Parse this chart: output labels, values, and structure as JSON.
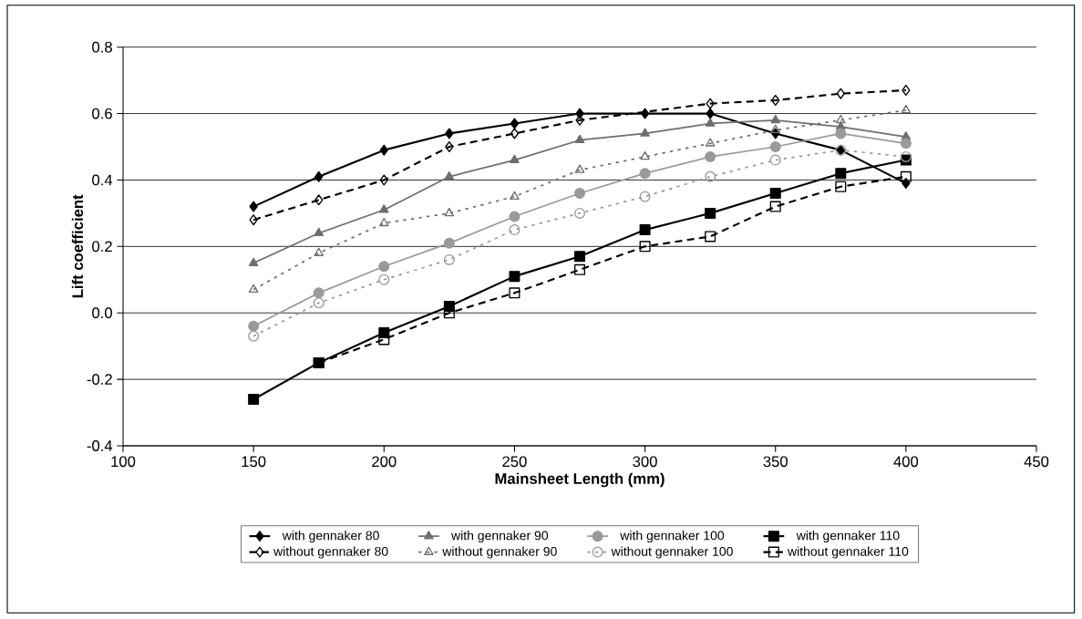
{
  "chart_data": {
    "type": "line",
    "xlabel": "Mainsheet Length (mm)",
    "ylabel": "Lift coefficient",
    "x": [
      150,
      175,
      200,
      225,
      250,
      275,
      300,
      325,
      350,
      375,
      400
    ],
    "xlim": [
      100,
      450
    ],
    "xticks": [
      100,
      150,
      200,
      250,
      300,
      350,
      400,
      450
    ],
    "ylim": [
      -0.4,
      0.8
    ],
    "yticks": [
      {
        "value": -0.4,
        "label": "-0.4"
      },
      {
        "value": -0.2,
        "label": "-0.2"
      },
      {
        "value": 0,
        "label": "0.0"
      },
      {
        "value": 0.2,
        "label": "0.2"
      },
      {
        "value": 0.4,
        "label": "0.4"
      },
      {
        "value": 0.6,
        "label": "0.6"
      },
      {
        "value": 0.8,
        "label": "0.8"
      }
    ],
    "grid": "y",
    "legend": "bottom",
    "series": [
      {
        "name": "with gennaker 80",
        "color": "#000000",
        "marker": "diamond",
        "line_style": "solid",
        "values": [
          0.32,
          0.41,
          0.49,
          0.54,
          0.57,
          0.6,
          0.6,
          0.6,
          0.54,
          0.49,
          0.39
        ]
      },
      {
        "name": "with gennaker 90",
        "color": "#6e6e6e",
        "marker": "triangle",
        "line_style": "solid",
        "values": [
          0.15,
          0.24,
          0.31,
          0.41,
          0.46,
          0.52,
          0.54,
          0.57,
          0.58,
          0.56,
          0.53
        ]
      },
      {
        "name": "with gennaker 100",
        "color": "#9a9a9a",
        "marker": "circle",
        "line_style": "solid",
        "values": [
          -0.04,
          0.06,
          0.14,
          0.21,
          0.29,
          0.36,
          0.42,
          0.47,
          0.5,
          0.54,
          0.51
        ]
      },
      {
        "name": "with gennaker 110",
        "color": "#000000",
        "marker": "square",
        "line_style": "solid",
        "values": [
          -0.26,
          -0.15,
          -0.06,
          0.02,
          0.11,
          0.17,
          0.25,
          0.3,
          0.36,
          0.42,
          0.46
        ]
      },
      {
        "name": "without gennaker 80",
        "color": "#000000",
        "marker": "diamond",
        "line_style": "dashed",
        "values": [
          0.28,
          0.34,
          0.4,
          0.5,
          0.54,
          0.58,
          null,
          0.63,
          0.64,
          0.66,
          0.67
        ]
      },
      {
        "name": "without gennaker 90",
        "color": "#6e6e6e",
        "marker": "triangle",
        "line_style": "dotted",
        "values": [
          0.07,
          0.18,
          0.27,
          0.3,
          0.35,
          0.43,
          0.47,
          0.51,
          0.55,
          0.58,
          0.61
        ]
      },
      {
        "name": "without gennaker 100",
        "color": "#9a9a9a",
        "marker": "circle",
        "line_style": "dotted",
        "values": [
          -0.07,
          0.03,
          0.1,
          0.16,
          0.25,
          0.3,
          0.35,
          0.41,
          0.46,
          0.49,
          0.47
        ]
      },
      {
        "name": "without gennaker 110",
        "color": "#000000",
        "marker": "square",
        "line_style": "dashed",
        "values": [
          null,
          -0.15,
          -0.08,
          0.0,
          0.06,
          0.13,
          0.2,
          0.23,
          0.32,
          0.38,
          0.41
        ]
      }
    ]
  }
}
